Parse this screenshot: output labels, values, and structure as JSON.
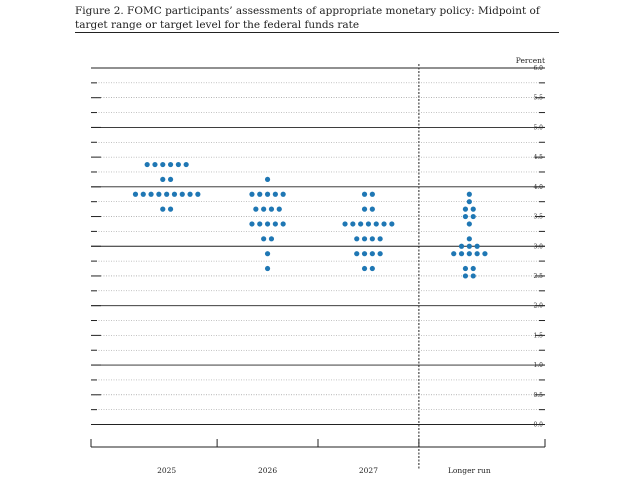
{
  "figure": {
    "title": "Figure 2.  FOMC participants’ assessments of appropriate monetary policy: Midpoint of target range or target level for the federal funds rate"
  },
  "colors": {
    "dot": "#1f77b4",
    "major_line": "#222222",
    "minor_line": "#888888"
  },
  "chart_data": {
    "type": "scatter",
    "subtype": "dot-plot",
    "title": "",
    "xlabel": "",
    "ylabel": "Percent",
    "ylim": [
      0,
      6
    ],
    "yticks": [
      "0.0",
      "0.5",
      "1.0",
      "1.5",
      "2.0",
      "2.5",
      "3.0",
      "3.5",
      "4.0",
      "4.5",
      "5.0",
      "5.5",
      "6.0"
    ],
    "ytick_values": [
      0,
      0.5,
      1,
      1.5,
      2,
      2.5,
      3,
      3.5,
      4,
      4.5,
      5,
      5.5,
      6
    ],
    "categories": [
      "2025",
      "2026",
      "2027",
      "Longer run"
    ],
    "separator_after_category": 2,
    "grid": true,
    "series": [
      {
        "category": "2025",
        "points": [
          {
            "y": 3.875,
            "count": 9
          },
          {
            "y": 3.625,
            "count": 2
          },
          {
            "y": 4.125,
            "count": 2
          },
          {
            "y": 4.375,
            "count": 6
          }
        ]
      },
      {
        "category": "2026",
        "points": [
          {
            "y": 2.625,
            "count": 1
          },
          {
            "y": 2.875,
            "count": 1
          },
          {
            "y": 3.125,
            "count": 2
          },
          {
            "y": 3.375,
            "count": 5
          },
          {
            "y": 3.625,
            "count": 4
          },
          {
            "y": 3.875,
            "count": 5
          },
          {
            "y": 4.125,
            "count": 1
          }
        ]
      },
      {
        "category": "2027",
        "points": [
          {
            "y": 2.625,
            "count": 2
          },
          {
            "y": 2.875,
            "count": 4
          },
          {
            "y": 3.125,
            "count": 4
          },
          {
            "y": 3.375,
            "count": 7
          },
          {
            "y": 3.625,
            "count": 2
          },
          {
            "y": 3.875,
            "count": 2
          }
        ]
      },
      {
        "category": "Longer run",
        "points": [
          {
            "y": 2.5,
            "count": 2
          },
          {
            "y": 2.625,
            "count": 2
          },
          {
            "y": 2.875,
            "count": 5
          },
          {
            "y": 3.0,
            "count": 3
          },
          {
            "y": 3.125,
            "count": 1
          },
          {
            "y": 3.375,
            "count": 1
          },
          {
            "y": 3.5,
            "count": 2
          },
          {
            "y": 3.625,
            "count": 2
          },
          {
            "y": 3.75,
            "count": 1
          },
          {
            "y": 3.875,
            "count": 1
          }
        ]
      }
    ]
  }
}
